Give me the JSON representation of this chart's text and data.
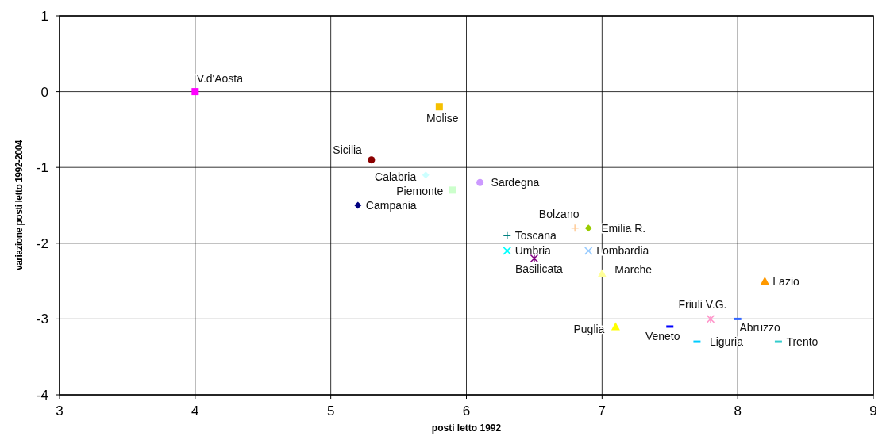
{
  "chart_data": {
    "type": "scatter",
    "xlabel": "posti letto 1992",
    "ylabel": "variazione posti letto 1992-2004",
    "xlim": [
      3,
      9
    ],
    "xticks": [
      3,
      4,
      5,
      6,
      7,
      8,
      9
    ],
    "ylim": [
      -4,
      1
    ],
    "yticks": [
      -4,
      -3,
      -2,
      -1,
      0,
      1
    ],
    "grid": true,
    "series": [
      {
        "name": "V.d'Aosta",
        "color": "#ff00ff",
        "marker": "square",
        "x": [
          4
        ],
        "values": [
          0
        ]
      },
      {
        "name": "Molise",
        "color": "#f5c000",
        "marker": "square",
        "x": [
          5.8
        ],
        "values": [
          -0.2
        ]
      },
      {
        "name": "Sicilia",
        "color": "#8b0000",
        "marker": "circle",
        "x": [
          5.3
        ],
        "values": [
          -0.9
        ]
      },
      {
        "name": "Calabria",
        "color": "#ccffff",
        "marker": "diamond",
        "x": [
          5.7
        ],
        "values": [
          -1.1
        ]
      },
      {
        "name": "Piemonte",
        "color": "#ccffcc",
        "marker": "square",
        "x": [
          5.9
        ],
        "values": [
          -1.3
        ]
      },
      {
        "name": "Sardegna",
        "color": "#cc99ff",
        "marker": "circle",
        "x": [
          6.1
        ],
        "values": [
          -1.2
        ]
      },
      {
        "name": "Campania",
        "color": "#000080",
        "marker": "diamond",
        "x": [
          5.2
        ],
        "values": [
          -1.5
        ]
      },
      {
        "name": "Bolzano",
        "color": "#ffcc99",
        "marker": "plus",
        "x": [
          6.8
        ],
        "values": [
          -1.8
        ]
      },
      {
        "name": "Emilia R.",
        "color": "#99cc00",
        "marker": "diamond",
        "x": [
          6.9
        ],
        "values": [
          -1.8
        ]
      },
      {
        "name": "Toscana",
        "color": "#008080",
        "marker": "plus",
        "x": [
          6.3
        ],
        "values": [
          -1.9
        ]
      },
      {
        "name": "Umbria",
        "color": "#00ffff",
        "marker": "x",
        "x": [
          6.3
        ],
        "values": [
          -2.1
        ]
      },
      {
        "name": "Lombardia",
        "color": "#99ccff",
        "marker": "x",
        "x": [
          6.9
        ],
        "values": [
          -2.1
        ]
      },
      {
        "name": "Basilicata",
        "color": "#800080",
        "marker": "cross",
        "x": [
          6.5
        ],
        "values": [
          -2.2
        ]
      },
      {
        "name": "Marche",
        "color": "#ffff99",
        "marker": "triangle",
        "x": [
          7
        ],
        "values": [
          -2.4
        ]
      },
      {
        "name": "Lazio",
        "color": "#ff9900",
        "marker": "triangle",
        "x": [
          8.2
        ],
        "values": [
          -2.5
        ]
      },
      {
        "name": "Friuli V.G.",
        "color": "#ff99cc",
        "marker": "cross",
        "x": [
          7.8
        ],
        "values": [
          -3
        ]
      },
      {
        "name": "Abruzzo",
        "color": "#3366ff",
        "marker": "square",
        "x": [
          8
        ],
        "values": [
          -3
        ]
      },
      {
        "name": "Puglia",
        "color": "#ffff00",
        "marker": "triangle",
        "x": [
          7.1
        ],
        "values": [
          -3.1
        ]
      },
      {
        "name": "Veneto",
        "color": "#0000ff",
        "marker": "square",
        "x": [
          7.5
        ],
        "values": [
          -3.1
        ]
      },
      {
        "name": "Liguria",
        "color": "#00ccff",
        "marker": "square",
        "x": [
          7.7
        ],
        "values": [
          -3.3
        ]
      },
      {
        "name": "Trento",
        "color": "#33cccc",
        "marker": "square",
        "x": [
          8.3
        ],
        "values": [
          -3.3
        ]
      }
    ]
  }
}
